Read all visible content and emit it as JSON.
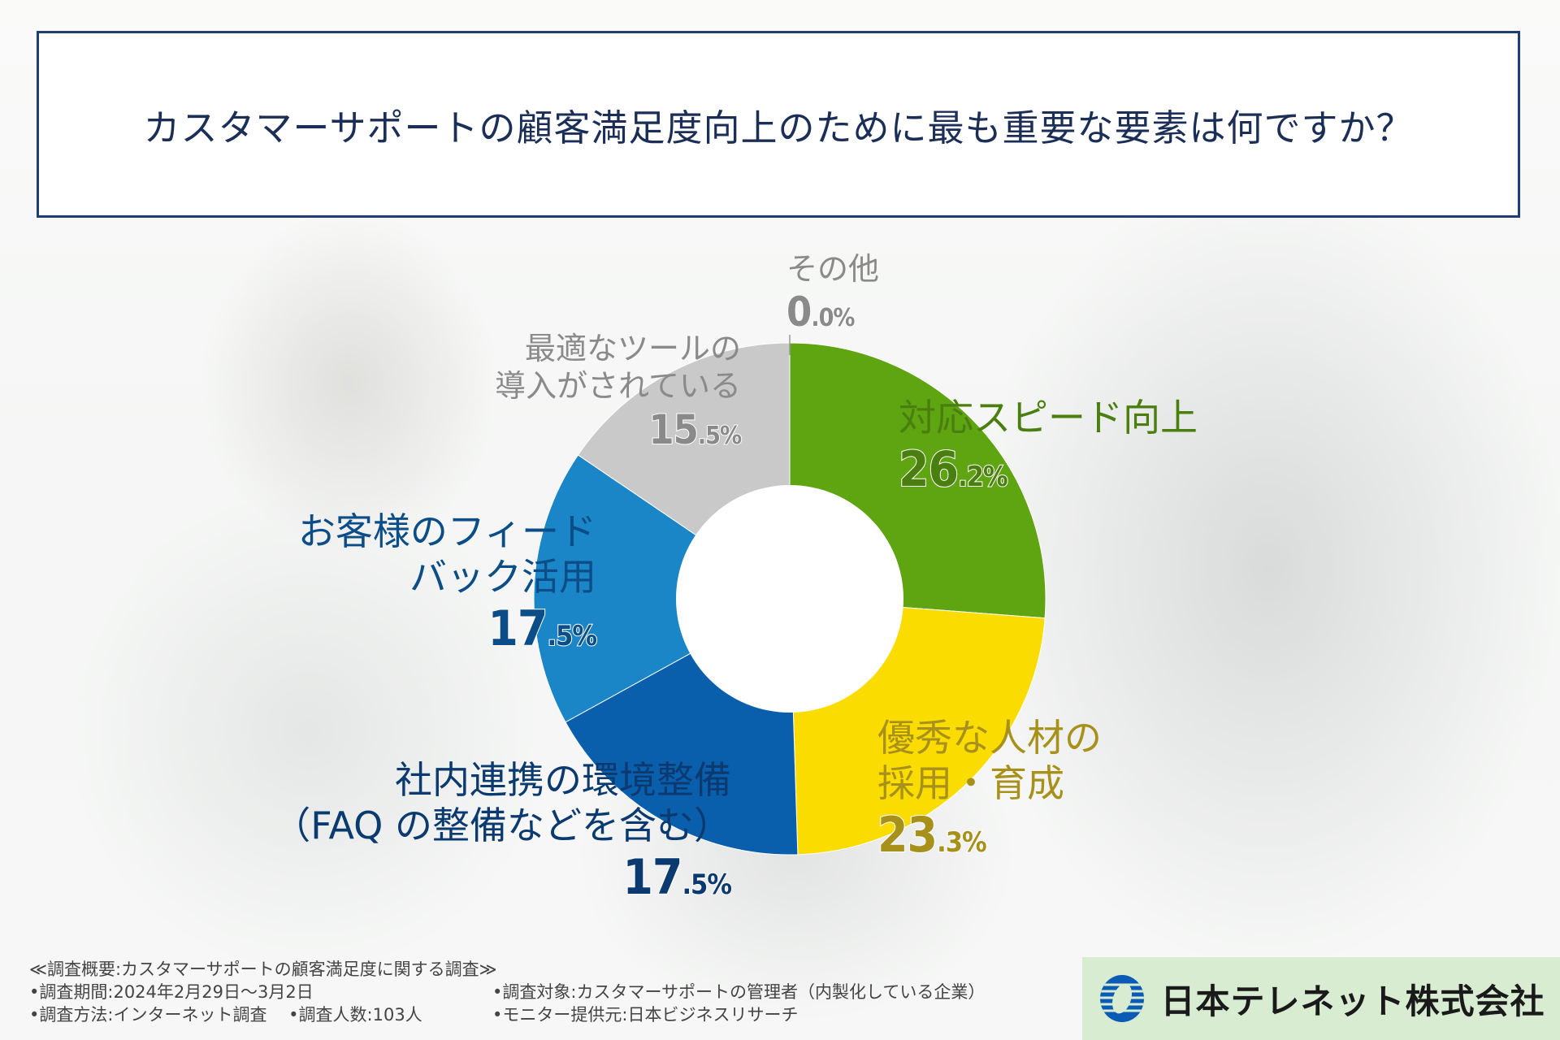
{
  "title": "カスタマーサポートの顧客満足度向上のために最も重要な要素は何ですか？",
  "chart_data": {
    "type": "pie",
    "donut": true,
    "slices": [
      {
        "label": "対応スピード向上",
        "value": 26.2,
        "color": "#5fa512",
        "label_color": "#4a7f0f"
      },
      {
        "label": "優秀な人材の採用・育成",
        "value": 23.3,
        "color": "#fadc00",
        "label_color": "#a8911a"
      },
      {
        "label": "社内連携の環境整備（FAQの整備などを含む）",
        "value": 17.5,
        "color": "#0a5fad",
        "label_color": "#0a3a70"
      },
      {
        "label": "お客様のフィードバック活用",
        "value": 17.5,
        "color": "#1a86c8",
        "label_color": "#0b4d86"
      },
      {
        "label": "最適なツールの導入がされている",
        "value": 15.5,
        "color": "#c8c9c8",
        "label_color": "#8a8a8a"
      },
      {
        "label": "その他",
        "value": 0.0,
        "color": "#aaaaaa",
        "label_color": "#8a8a8a"
      }
    ]
  },
  "labels": {
    "speed": {
      "line1": "対応スピード向上",
      "int": "26",
      "dec": ".2%"
    },
    "staff": {
      "line1": "優秀な人材の",
      "line2": "採用・育成",
      "int": "23",
      "dec": ".3%"
    },
    "internal": {
      "line1": "社内連携の環境整備",
      "line2": "（FAQ の整備などを含む）",
      "int": "17",
      "dec": ".5%"
    },
    "feedback": {
      "line1": "お客様のフィード",
      "line2": "バック活用",
      "int": "17",
      "dec": ".5%"
    },
    "tools": {
      "line1": "最適なツールの",
      "line2": "導入がされている",
      "int": "15",
      "dec": ".5%"
    },
    "other": {
      "line1": "その他",
      "int": "0",
      "dec": ".0%"
    }
  },
  "survey": {
    "heading": "≪調査概要:カスタマーサポートの顧客満足度に関する調査≫",
    "period": "•調査期間:2024年2月29日〜3月2日",
    "target": "•調査対象:カスタマーサポートの管理者（内製化している企業）",
    "method": "•調査方法:インターネット調査",
    "count": "•調査人数:103人",
    "monitor": "•モニター提供元:日本ビジネスリサーチ"
  },
  "logo": {
    "name": "日本テレネット株式会社"
  }
}
